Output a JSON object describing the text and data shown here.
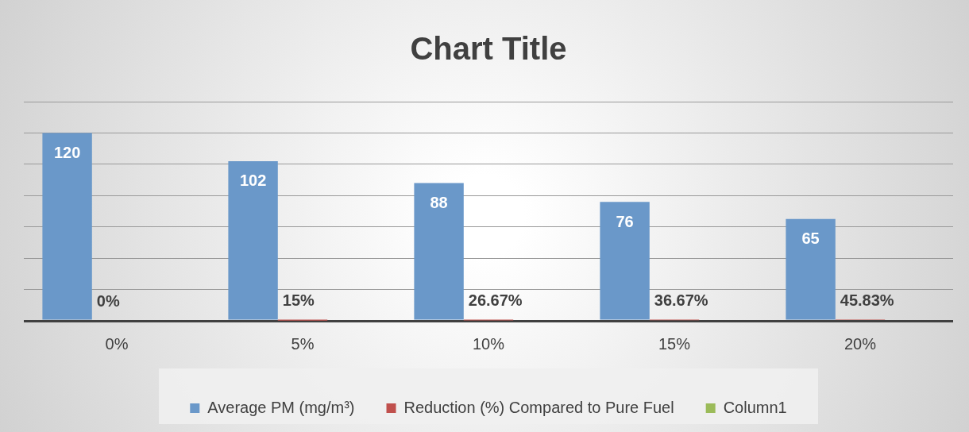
{
  "chart_data": {
    "type": "bar",
    "title": "Chart Title",
    "categories": [
      "0%",
      "5%",
      "10%",
      "15%",
      "20%"
    ],
    "series": [
      {
        "name": "Average PM (mg/m³)",
        "color": "#6a98c9",
        "values": [
          120,
          102,
          88,
          76,
          65
        ],
        "value_labels": [
          "120",
          "102",
          "88",
          "76",
          "65"
        ]
      },
      {
        "name": "Reduction (%) Compared to Pure Fuel",
        "color": "#c0504d",
        "values": [
          0,
          0.15,
          0.2667,
          0.3667,
          0.4583
        ],
        "value_labels": [
          "0%",
          "15%",
          "26.67%",
          "36.67%",
          "45.83%"
        ]
      },
      {
        "name": "Column1",
        "color": "#9bbb59",
        "values": [
          null,
          null,
          null,
          null,
          null
        ]
      }
    ],
    "tick_labels": "x",
    "grid": "y",
    "legend": "bottom"
  }
}
